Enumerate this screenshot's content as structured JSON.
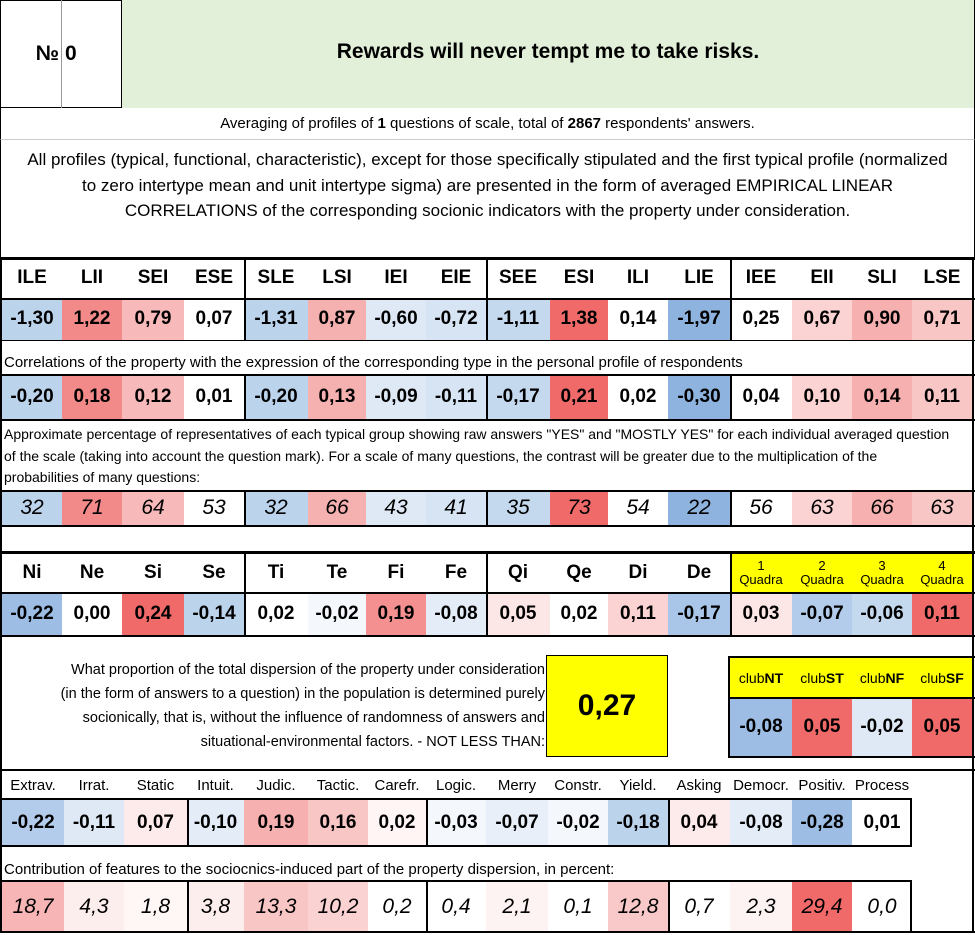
{
  "header": {
    "number_label": "№",
    "number_value": "0",
    "question": "Rewards will never tempt me to take risks."
  },
  "summary": {
    "prefix": "Averaging of profiles of ",
    "questions_count": "1",
    "middle": " questions of scale, total of ",
    "respondents_count": "2867",
    "suffix": " respondents' answers."
  },
  "description": "All profiles (typical, functional, characteristic), except for those specifically stipulated and the first typical profile (normalized to zero intertype mean and unit intertype sigma) are presented in the form of averaged EMPIRICAL LINEAR CORRELATIONS of the corresponding socionic indicators with the property under consideration.",
  "types": [
    "ILE",
    "LII",
    "SEI",
    "ESE",
    "SLE",
    "LSI",
    "IEI",
    "EIE",
    "SEE",
    "ESI",
    "ILI",
    "LIE",
    "IEE",
    "EII",
    "SLI",
    "LSE"
  ],
  "typical_profile": [
    "-1,30",
    "1,22",
    "0,79",
    "0,07",
    "-1,31",
    "0,87",
    "-0,60",
    "-0,72",
    "-1,11",
    "1,38",
    "0,14",
    "-1,97",
    "0,25",
    "0,67",
    "0,90",
    "0,71"
  ],
  "typical_colors": [
    "#bcd3ec",
    "#f28a8a",
    "#f7b9b9",
    "#ffffff",
    "#bcd3ec",
    "#f5b0b0",
    "#dfe9f6",
    "#d6e4f3",
    "#c4d8ee",
    "#f06a6a",
    "#ffffff",
    "#8fb3df",
    "#ffffff",
    "#fbd3d3",
    "#f6b0b0",
    "#f9c6c6"
  ],
  "correlation_caption": "Correlations of the property with the expression of the corresponding type in the personal profile of respondents",
  "correlations": [
    "-0,20",
    "0,18",
    "0,12",
    "0,01",
    "-0,20",
    "0,13",
    "-0,09",
    "-0,11",
    "-0,17",
    "0,21",
    "0,02",
    "-0,30",
    "0,04",
    "0,10",
    "0,14",
    "0,11"
  ],
  "correlation_colors": [
    "#bcd3ec",
    "#f28a8a",
    "#f7b9b9",
    "#ffffff",
    "#bcd3ec",
    "#f5b0b0",
    "#dfe9f6",
    "#d6e4f3",
    "#c4d8ee",
    "#f06a6a",
    "#ffffff",
    "#8fb3df",
    "#ffffff",
    "#fbd3d3",
    "#f6b0b0",
    "#f9c6c6"
  ],
  "percentage_caption": "Approximate percentage of representatives of each typical group showing raw answers \"YES\" and \"MOSTLY YES\" for each individual averaged question of the scale (taking into account the question mark). For a scale of many questions, the contrast will be greater due to the multiplication of the probabilities of many questions:",
  "percentages": [
    "32",
    "71",
    "64",
    "53",
    "32",
    "66",
    "43",
    "41",
    "35",
    "73",
    "54",
    "22",
    "56",
    "63",
    "66",
    "63"
  ],
  "percentage_colors": [
    "#bcd3ec",
    "#f28a8a",
    "#f7b9b9",
    "#ffffff",
    "#bcd3ec",
    "#f5b0b0",
    "#dfe9f6",
    "#d6e4f3",
    "#c4d8ee",
    "#f06a6a",
    "#ffffff",
    "#8fb3df",
    "#ffffff",
    "#fbd3d3",
    "#f6b0b0",
    "#f9c6c6"
  ],
  "functions": [
    "Ni",
    "Ne",
    "Si",
    "Se",
    "Ti",
    "Te",
    "Fi",
    "Fe",
    "Qi",
    "Qe",
    "Di",
    "De"
  ],
  "function_values": [
    "-0,22",
    "0,00",
    "0,24",
    "-0,14",
    "0,02",
    "-0,02",
    "0,19",
    "-0,08",
    "0,05",
    "0,02",
    "0,11",
    "-0,17"
  ],
  "function_colors": [
    "#9dbde4",
    "#ffffff",
    "#f06a6a",
    "#bcd3ec",
    "#ffffff",
    "#f4f8fc",
    "#f49090",
    "#e3ecf7",
    "#fde6e6",
    "#ffffff",
    "#fbd3d3",
    "#a9c5e7"
  ],
  "quadras": [
    {
      "num": "1",
      "label": "Quadra",
      "value": "0,03",
      "color": "#fde6e6"
    },
    {
      "num": "2",
      "label": "Quadra",
      "value": "-0,07",
      "color": "#b3cceb"
    },
    {
      "num": "3",
      "label": "Quadra",
      "value": "-0,06",
      "color": "#c4d8ee"
    },
    {
      "num": "4",
      "label": "Quadra",
      "value": "0,11",
      "color": "#f06a6a"
    }
  ],
  "dispersion_note": "What proportion of the total dispersion of the property under consideration (in the form of answers to a question) in the population is determined purely socionically, that is, without the influence of randomness of answers and situational-environmental factors. - NOT LESS THAN:",
  "dispersion_value": "0,27",
  "clubs": [
    {
      "prefix": "club",
      "bold": "NT",
      "value": "-0,08",
      "color": "#9dbde4"
    },
    {
      "prefix": "club",
      "bold": "ST",
      "value": "0,05",
      "color": "#f06a6a"
    },
    {
      "prefix": "club",
      "bold": "NF",
      "value": "-0,02",
      "color": "#dfe9f6"
    },
    {
      "prefix": "club",
      "bold": "SF",
      "value": "0,05",
      "color": "#f06a6a"
    }
  ],
  "features": [
    "Extrav.",
    "Irrat.",
    "Static",
    "Intuit.",
    "Judic.",
    "Tactic.",
    "Carefr.",
    "Logic.",
    "Merry",
    "Constr.",
    "Yield.",
    "Asking",
    "Democr.",
    "Positiv.",
    "Process"
  ],
  "feature_values": [
    "-0,22",
    "-0,11",
    "0,07",
    "-0,10",
    "0,19",
    "0,16",
    "0,02",
    "-0,03",
    "-0,07",
    "-0,02",
    "-0,18",
    "0,04",
    "-0,08",
    "-0,28",
    "0,01"
  ],
  "feature_colors": [
    "#b3cceb",
    "#dfe9f6",
    "#fdeaea",
    "#e3ecf7",
    "#f6b0b0",
    "#f9c6c6",
    "#fff5f5",
    "#f4f8fc",
    "#e8eff8",
    "#f4f8fc",
    "#bcd3ec",
    "#fdeaea",
    "#e3ecf7",
    "#9dbde4",
    "#ffffff"
  ],
  "contribution_caption": "Contribution of features to the sociocnics-induced part of the property dispersion, in percent:",
  "contributions": [
    "18,7",
    "4,3",
    "1,8",
    "3,8",
    "13,3",
    "10,2",
    "0,2",
    "0,4",
    "2,1",
    "0,1",
    "12,8",
    "0,7",
    "2,3",
    "29,4",
    "0,0"
  ],
  "contribution_colors": [
    "#f7b5b5",
    "#fdeeee",
    "#fff6f6",
    "#fdeeee",
    "#f9c6c6",
    "#fad2d2",
    "#ffffff",
    "#ffffff",
    "#fef3f3",
    "#ffffff",
    "#f9c8c8",
    "#ffffff",
    "#fef3f3",
    "#f06a6a",
    "#ffffff"
  ],
  "colors": {
    "header_green": "#e2efd9",
    "highlight_yellow": "#ffff00"
  }
}
